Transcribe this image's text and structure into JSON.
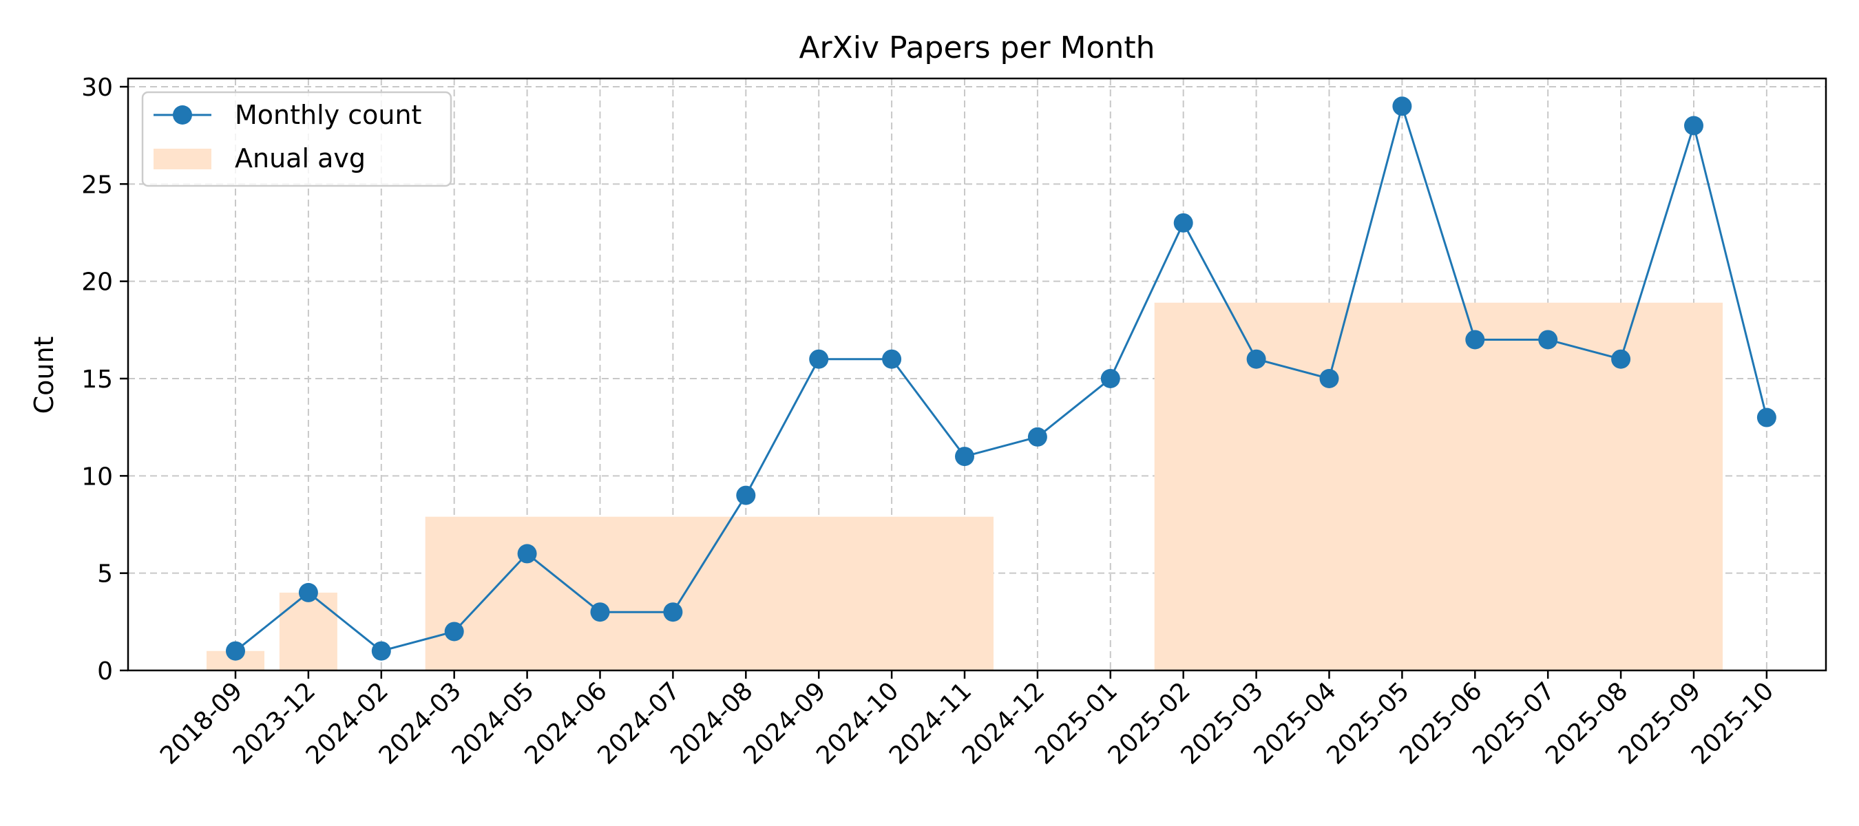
{
  "chart_data": {
    "type": "line",
    "title": "ArXiv Papers per Month",
    "xlabel": "",
    "ylabel": "Count",
    "ylim": [
      0,
      30
    ],
    "yticks": [
      0,
      5,
      10,
      15,
      20,
      25,
      30
    ],
    "grid": true,
    "legend_position": "top-left",
    "categories": [
      "2018-09",
      "2023-12",
      "2024-02",
      "2024-03",
      "2024-05",
      "2024-06",
      "2024-07",
      "2024-08",
      "2024-09",
      "2024-10",
      "2024-11",
      "2024-12",
      "2025-01",
      "2025-02",
      "2025-03",
      "2025-04",
      "2025-05",
      "2025-06",
      "2025-07",
      "2025-08",
      "2025-09",
      "2025-10"
    ],
    "series": [
      {
        "name": "Monthly count",
        "kind": "line",
        "color": "#1f77b4",
        "values": [
          1,
          4,
          1,
          2,
          6,
          3,
          3,
          9,
          16,
          16,
          11,
          12,
          15,
          23,
          16,
          15,
          29,
          17,
          17,
          16,
          28,
          13
        ]
      },
      {
        "name": "Anual avg",
        "kind": "bar",
        "color": "#ffe3cc",
        "spans": [
          {
            "from": "2018-09",
            "to": "2018-09",
            "value": 1
          },
          {
            "from": "2023-12",
            "to": "2023-12",
            "value": 4
          },
          {
            "from": "2024-03",
            "to": "2024-11",
            "value": 7.9
          },
          {
            "from": "2025-02",
            "to": "2025-09",
            "value": 18.9
          }
        ]
      }
    ]
  }
}
